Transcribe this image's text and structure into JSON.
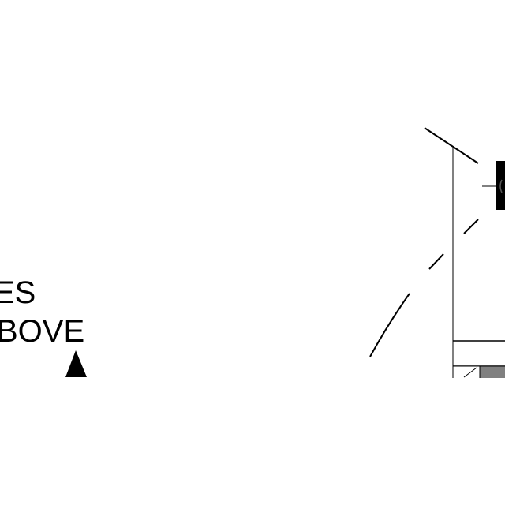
{
  "drawing": {
    "note_line_1": "ES",
    "note_line_2": "BOVE"
  },
  "colors": {
    "ink": "#000000",
    "fill_gray": "#808080",
    "background": "#ffffff"
  }
}
